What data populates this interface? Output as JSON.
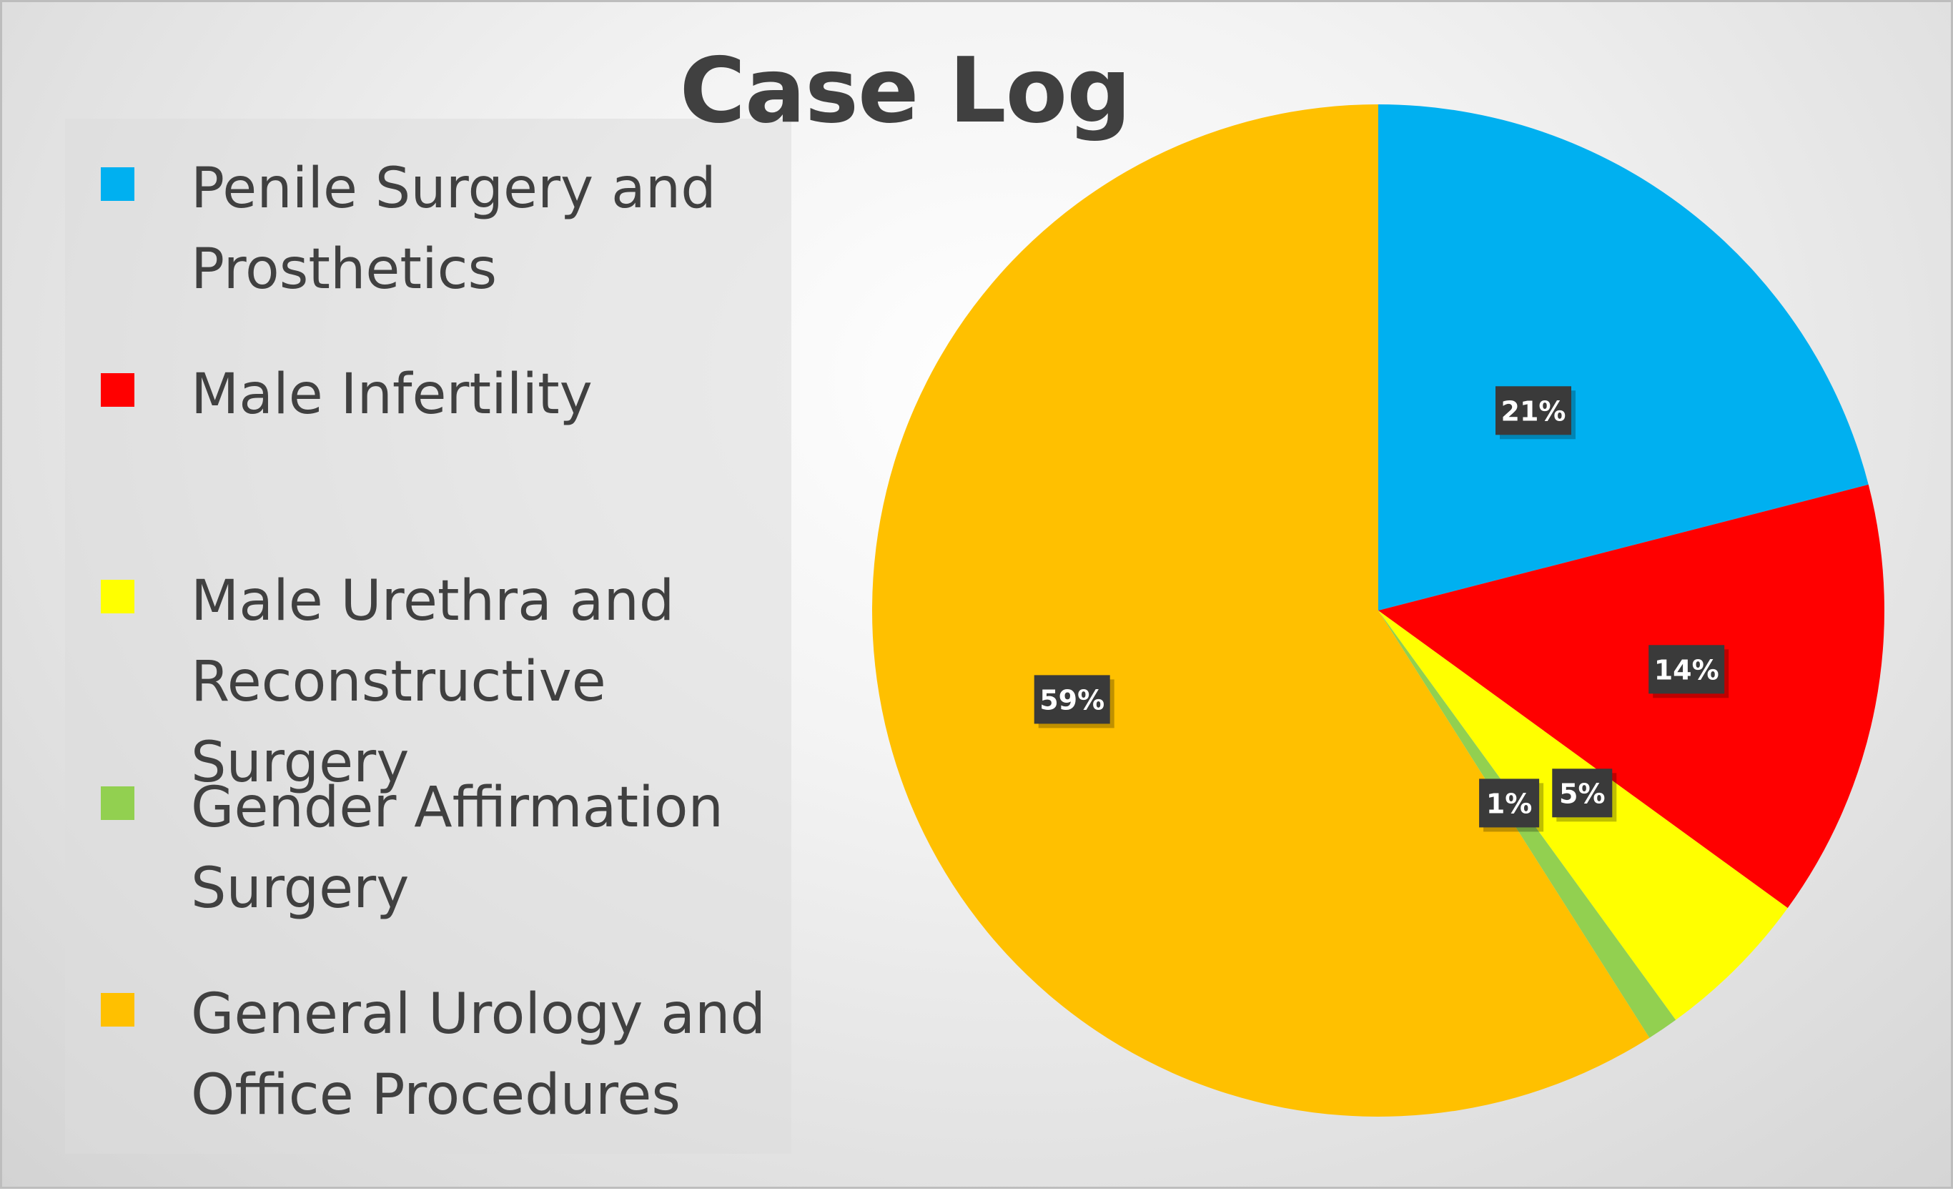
{
  "chart_data": {
    "type": "pie",
    "title": "Case Log",
    "categories": [
      "Penile Surgery and Prosthetics",
      "Male Infertility",
      "Male Urethra and Reconstructive Surgery",
      "Gender Affirmation Surgery",
      "General Urology and Office Procedures"
    ],
    "values": [
      21,
      14,
      5,
      1,
      59
    ],
    "labels": [
      "21%",
      "14%",
      "5%",
      "1%",
      "59%"
    ],
    "colors": [
      "#00b0f0",
      "#ff0000",
      "#ffff00",
      "#92d050",
      "#ffc000"
    ],
    "legend_position": "left"
  }
}
